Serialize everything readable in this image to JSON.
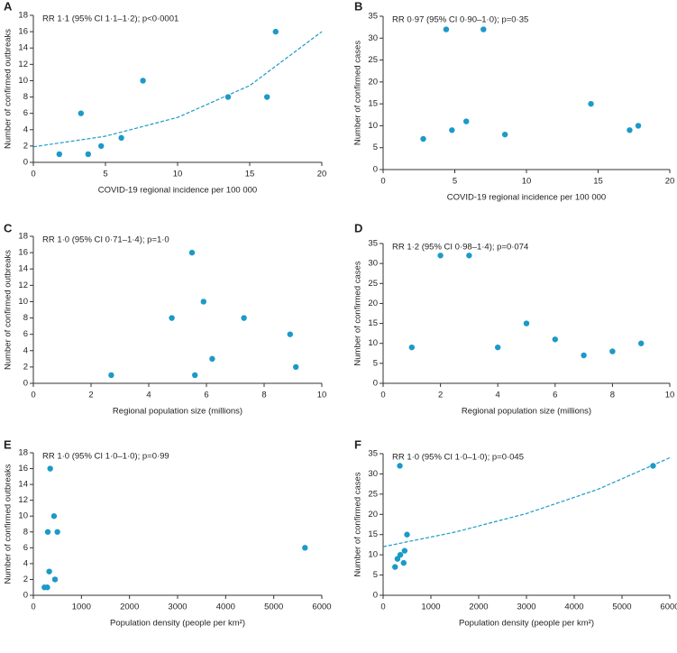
{
  "chart_data": [
    {
      "type": "scatter",
      "label": "A",
      "annotation": "RR 1·1 (95% CI 1·1–1·2); p<0·0001",
      "x_label": "COVID-19 regional incidence per 100 000",
      "y_label": "Number of confirmed outbreaks",
      "color": "#1b9ac8",
      "x": [
        1.8,
        3.3,
        3.8,
        4.7,
        6.1,
        7.6,
        13.5,
        16.2,
        16.8
      ],
      "values": [
        1,
        6,
        1,
        2,
        3,
        10,
        8,
        8,
        16
      ],
      "fit": {
        "x": [
          0,
          5,
          10,
          15,
          20
        ],
        "y": [
          1.9,
          3.2,
          5.5,
          9.4,
          16
        ]
      },
      "xlim": [
        0,
        20
      ],
      "xticks": [
        0,
        5,
        10,
        15,
        20
      ],
      "ylim": [
        0,
        18
      ],
      "yticks": [
        0,
        2,
        4,
        6,
        8,
        10,
        12,
        14,
        16,
        18
      ]
    },
    {
      "type": "scatter",
      "label": "B",
      "annotation": "RR 0·97 (95% CI 0·90–1·0); p=0·35",
      "x_label": "COVID-19 regional incidence per 100 000",
      "y_label": "Number of confirmed cases",
      "color": "#1b9ac8",
      "x": [
        2.8,
        4.4,
        4.8,
        5.8,
        7,
        8.5,
        14.5,
        17.2,
        17.8
      ],
      "values": [
        7,
        32,
        9,
        11,
        32,
        8,
        15,
        9,
        10
      ],
      "xlim": [
        0,
        20
      ],
      "xticks": [
        0,
        5,
        10,
        15,
        20
      ],
      "ylim": [
        0,
        35
      ],
      "yticks": [
        0,
        5,
        10,
        15,
        20,
        25,
        30,
        35
      ]
    },
    {
      "type": "scatter",
      "label": "C",
      "annotation": "RR 1·0 (95% CI 0·71–1·4); p=1·0",
      "x_label": "Regional population size (millions)",
      "y_label": "Number of confirmed outbreaks",
      "color": "#1b9ac8",
      "x": [
        2.7,
        4.8,
        5.5,
        5.6,
        5.9,
        6.2,
        7.3,
        8.9,
        9.1
      ],
      "values": [
        1,
        8,
        16,
        1,
        10,
        3,
        8,
        6,
        2
      ],
      "xlim": [
        0,
        10
      ],
      "xticks": [
        0,
        2,
        4,
        6,
        8,
        10
      ],
      "ylim": [
        0,
        18
      ],
      "yticks": [
        0,
        2,
        4,
        6,
        8,
        10,
        12,
        14,
        16,
        18
      ]
    },
    {
      "type": "scatter",
      "label": "D",
      "annotation": "RR 1·2 (95% CI 0·98–1·4); p=0·074",
      "x_label": "Regional population size (millions)",
      "y_label": "Number of confirmed cases",
      "color": "#1b9ac8",
      "x": [
        1,
        2,
        3,
        4,
        5,
        6,
        7,
        8,
        9
      ],
      "values": [
        9,
        32,
        32,
        9,
        15,
        11,
        7,
        8,
        10
      ],
      "xlim": [
        0,
        10
      ],
      "xticks": [
        0,
        2,
        4,
        6,
        8,
        10
      ],
      "ylim": [
        0,
        35
      ],
      "yticks": [
        0,
        5,
        10,
        15,
        20,
        25,
        30,
        35
      ]
    },
    {
      "type": "scatter",
      "label": "E",
      "annotation": "RR 1·0 (95% CI 1·0–1·0); p=0·99",
      "x_label": "Population density (people per km²)",
      "y_label": "Number of confirmed outbreaks",
      "color": "#1b9ac8",
      "x": [
        230,
        290,
        300,
        330,
        350,
        430,
        450,
        500,
        5650
      ],
      "values": [
        1,
        1,
        8,
        3,
        16,
        10,
        2,
        8,
        6
      ],
      "xlim": [
        0,
        6000
      ],
      "xticks": [
        0,
        1000,
        2000,
        3000,
        4000,
        5000,
        6000
      ],
      "ylim": [
        0,
        18
      ],
      "yticks": [
        0,
        2,
        4,
        6,
        8,
        10,
        12,
        14,
        16,
        18
      ]
    },
    {
      "type": "scatter",
      "label": "F",
      "annotation": "RR 1·0 (95% CI 1·0–1·0); p=0·045",
      "x_label": "Population density (people per km²)",
      "y_label": "Number of confirmed cases",
      "color": "#1b9ac8",
      "x": [
        250,
        300,
        350,
        360,
        430,
        450,
        500,
        5650
      ],
      "values": [
        7,
        9,
        32,
        10,
        8,
        11,
        15,
        32
      ],
      "fit": {
        "x": [
          0,
          1500,
          3000,
          4500,
          6000
        ],
        "y": [
          12,
          15.6,
          20.2,
          26.2,
          34
        ]
      },
      "xlim": [
        0,
        6000
      ],
      "xticks": [
        0,
        1000,
        2000,
        3000,
        4000,
        5000,
        6000
      ],
      "ylim": [
        0,
        35
      ],
      "yticks": [
        0,
        5,
        10,
        15,
        20,
        25,
        30,
        35
      ]
    }
  ]
}
